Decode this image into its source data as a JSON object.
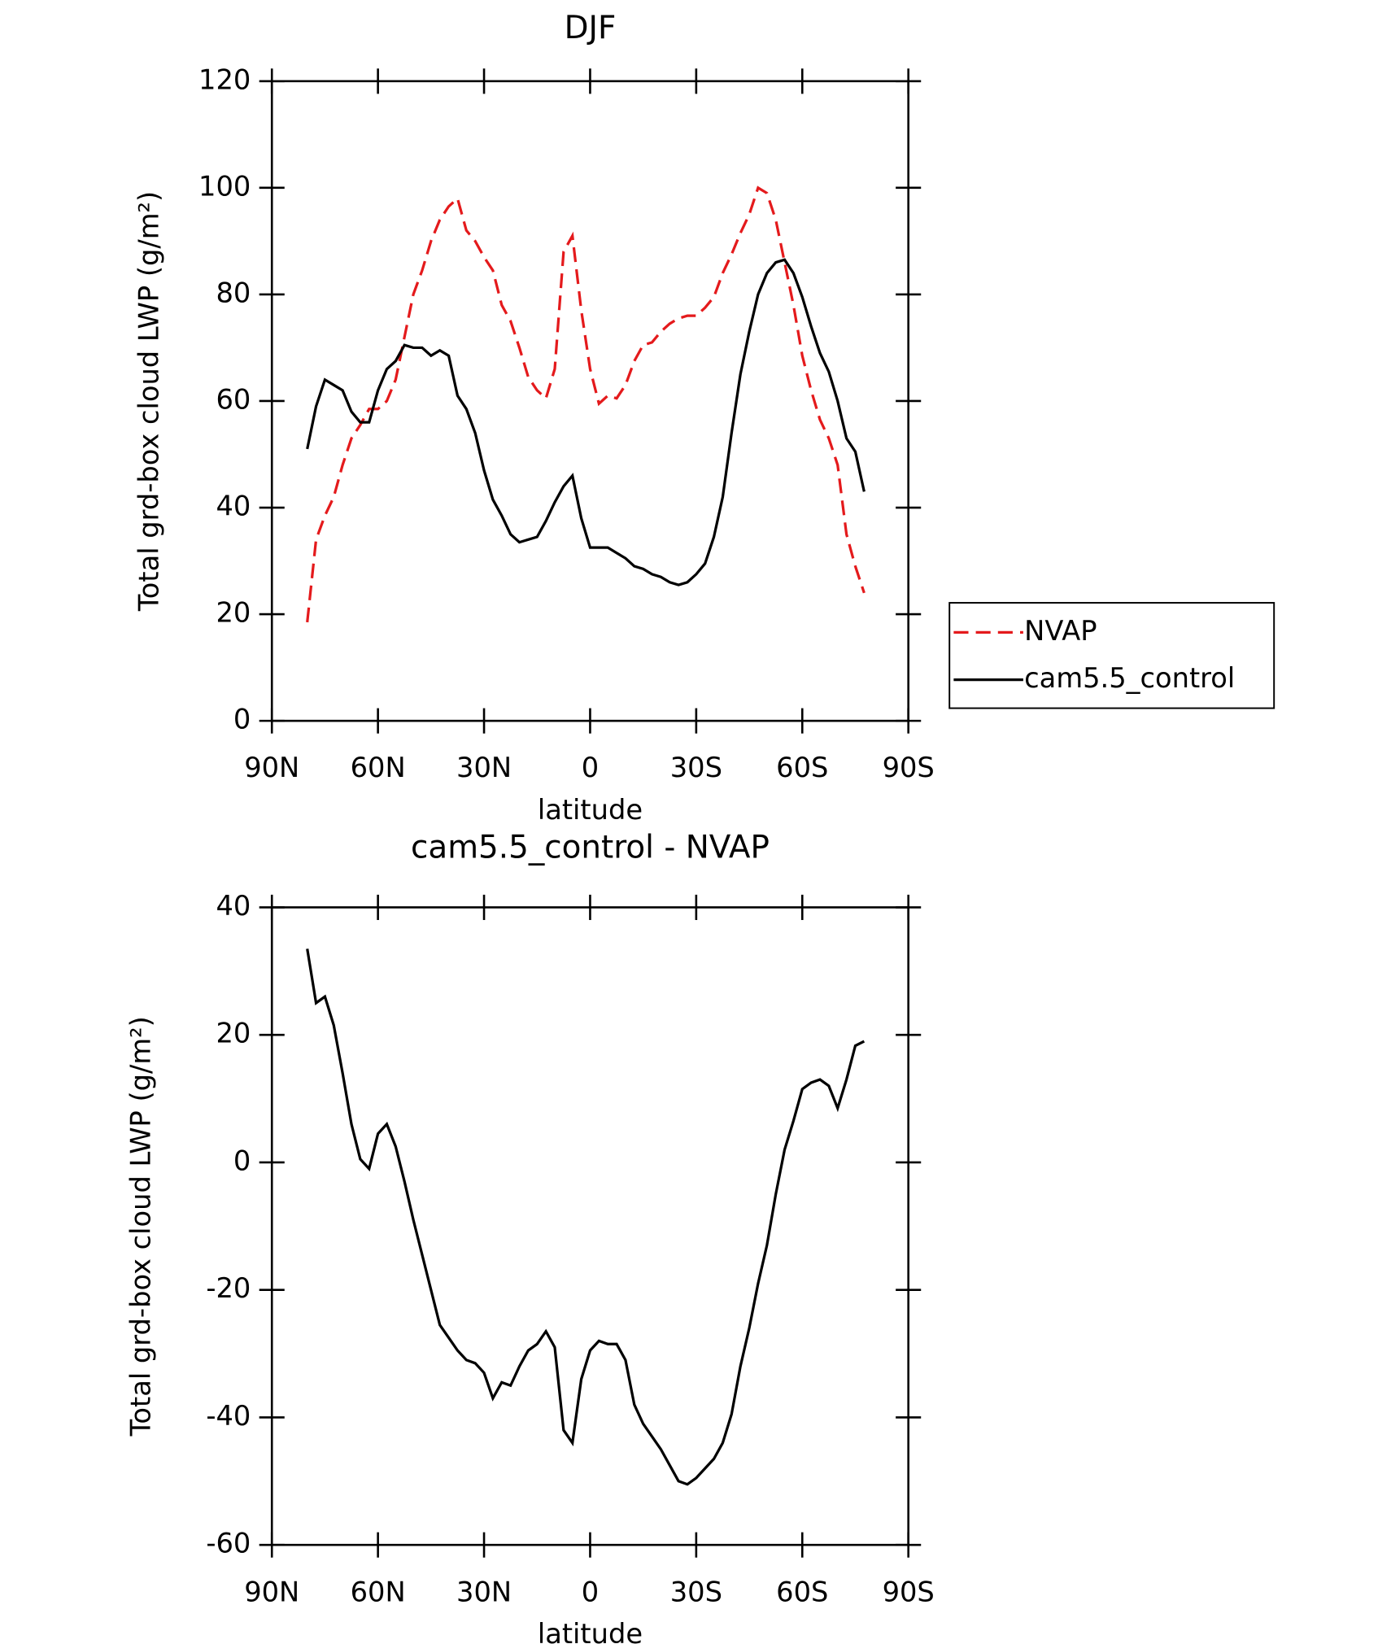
{
  "chart_data": [
    {
      "type": "line",
      "title": "DJF",
      "xlabel": "latitude",
      "ylabel": "Total grd-box cloud LWP (g/m²)",
      "x": [
        80,
        77.5,
        75,
        72.5,
        70,
        67.5,
        65,
        62.5,
        60,
        57.5,
        55,
        52.5,
        50,
        47.5,
        45,
        42.5,
        40,
        37.5,
        35,
        32.5,
        30,
        27.5,
        25,
        22.5,
        20,
        17.5,
        15,
        12.5,
        10,
        7.5,
        5,
        2.5,
        0,
        -2.5,
        -5,
        -7.5,
        -10,
        -12.5,
        -15,
        -17.5,
        -20,
        -22.5,
        -25,
        -27.5,
        -30,
        -32.5,
        -35,
        -37.5,
        -40,
        -42.5,
        -45,
        -47.5,
        -50,
        -52.5,
        -55,
        -57.5,
        -60,
        -62.5,
        -65,
        -67.5,
        -70,
        -72.5,
        -75,
        -77.5
      ],
      "series": [
        {
          "name": "NVAP",
          "color": "#e41a1c",
          "dash": "dashed",
          "values": [
            18.5,
            34,
            38.5,
            42,
            48,
            53,
            55.5,
            58.5,
            58.5,
            60,
            64,
            72,
            80,
            84.5,
            90,
            94,
            96.5,
            98,
            92,
            90,
            87,
            84.5,
            78,
            75,
            70,
            64.5,
            62,
            60.5,
            66,
            88,
            91,
            77,
            66,
            59.5,
            61,
            60.5,
            63,
            67.5,
            70.5,
            71,
            73,
            74.5,
            75.5,
            76,
            76,
            77.5,
            79.5,
            84,
            87.5,
            91.5,
            95,
            100,
            99,
            94,
            86,
            78,
            68.5,
            62,
            56.5,
            53,
            48,
            35,
            29,
            24
          ]
        },
        {
          "name": "cam5.5_control",
          "color": "#000000",
          "dash": "solid",
          "values": [
            51,
            59,
            64,
            63,
            62,
            58,
            56,
            56,
            62,
            66,
            67.5,
            70.5,
            70,
            70,
            68.5,
            69.5,
            68.5,
            61,
            58.5,
            54,
            47,
            41.5,
            38.5,
            35,
            33.5,
            34,
            34.5,
            37.5,
            41,
            44,
            46,
            38,
            32.5,
            32.5,
            32.5,
            31.5,
            30.5,
            29,
            28.5,
            27.5,
            27,
            26,
            25.5,
            26,
            27.5,
            29.5,
            34.5,
            42,
            54,
            65,
            73,
            80,
            84,
            86,
            86.5,
            84,
            79.5,
            74,
            69,
            65.5,
            60,
            53,
            50.5,
            43
          ]
        }
      ],
      "xlim": [
        90,
        -90
      ],
      "xticks": [
        {
          "value": 90,
          "label": "90N"
        },
        {
          "value": 60,
          "label": "60N"
        },
        {
          "value": 30,
          "label": "30N"
        },
        0,
        {
          "value": -30,
          "label": "30S"
        },
        {
          "value": -60,
          "label": "60S"
        },
        {
          "value": -90,
          "label": "90S"
        }
      ],
      "ylim": [
        0,
        120
      ],
      "yticks": [
        0,
        20,
        40,
        60,
        80,
        100,
        120
      ],
      "legend": "right"
    },
    {
      "type": "line",
      "title": "cam5.5_control - NVAP",
      "xlabel": "latitude",
      "ylabel": "Total grd-box cloud LWP (g/m²)",
      "x": [
        80,
        77.5,
        75,
        72.5,
        70,
        67.5,
        65,
        62.5,
        60,
        57.5,
        55,
        52.5,
        50,
        47.5,
        45,
        42.5,
        40,
        37.5,
        35,
        32.5,
        30,
        27.5,
        25,
        22.5,
        20,
        17.5,
        15,
        12.5,
        10,
        7.5,
        5,
        2.5,
        0,
        -2.5,
        -5,
        -7.5,
        -10,
        -12.5,
        -15,
        -17.5,
        -20,
        -22.5,
        -25,
        -27.5,
        -30,
        -32.5,
        -35,
        -37.5,
        -40,
        -42.5,
        -45,
        -47.5,
        -50,
        -52.5,
        -55,
        -57.5,
        -60,
        -62.5,
        -65,
        -67.5,
        -70,
        -72.5,
        -75,
        -77.5
      ],
      "series": [
        {
          "color": "#000000",
          "dash": "solid",
          "values": [
            33.5,
            25,
            26,
            21.5,
            14,
            6,
            0.5,
            -1,
            4.5,
            6,
            2.5,
            -3,
            -9,
            -14.5,
            -20,
            -25.5,
            -27.5,
            -29.5,
            -31,
            -31.5,
            -33,
            -37,
            -34.5,
            -35,
            -32,
            -29.5,
            -28.5,
            -26.5,
            -29,
            -42,
            -44,
            -34,
            -29.5,
            -28,
            -28.5,
            -28.5,
            -31,
            -38,
            -41,
            -43,
            -45,
            -47.5,
            -50,
            -50.5,
            -49.5,
            -48,
            -46.5,
            -44,
            -39.5,
            -32,
            -26,
            -19,
            -13,
            -5,
            2,
            6.5,
            11.5,
            12.5,
            13,
            12,
            8.5,
            13,
            18.3,
            19
          ]
        }
      ],
      "xlim": [
        90,
        -90
      ],
      "xticks": [
        {
          "value": 90,
          "label": "90N"
        },
        {
          "value": 60,
          "label": "60N"
        },
        {
          "value": 30,
          "label": "30N"
        },
        0,
        {
          "value": -30,
          "label": "30S"
        },
        {
          "value": -60,
          "label": "60S"
        },
        {
          "value": -90,
          "label": "90S"
        }
      ],
      "ylim": [
        -60,
        40
      ],
      "yticks": [
        -60,
        -40,
        -20,
        0,
        20,
        40
      ]
    }
  ]
}
